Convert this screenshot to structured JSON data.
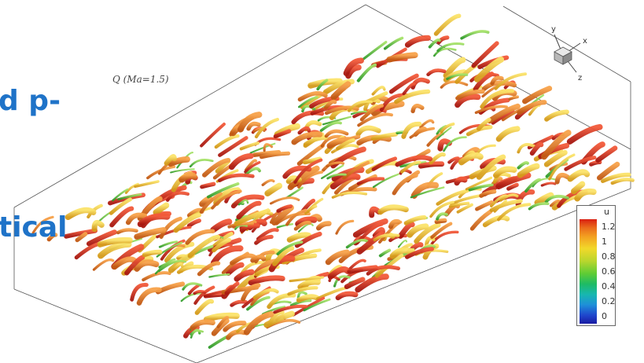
{
  "slide_text": {
    "line1": "d p-",
    "line2": "tical"
  },
  "figure": {
    "q_label": "Q (Ma=1.5)",
    "axes": {
      "x": "x",
      "y": "y",
      "z": "z"
    },
    "legend": {
      "title": "u",
      "ticks": [
        "1.2",
        "1",
        "0.8",
        "0.6",
        "0.4",
        "0.2",
        "0"
      ]
    }
  },
  "colors": {
    "slide_text": "#1f73c8",
    "structures": [
      "#c8201a",
      "#de4f1c",
      "#e87a1f",
      "#f0a321",
      "#f5cf2a",
      "#9fd22f",
      "#45c23a"
    ]
  }
}
